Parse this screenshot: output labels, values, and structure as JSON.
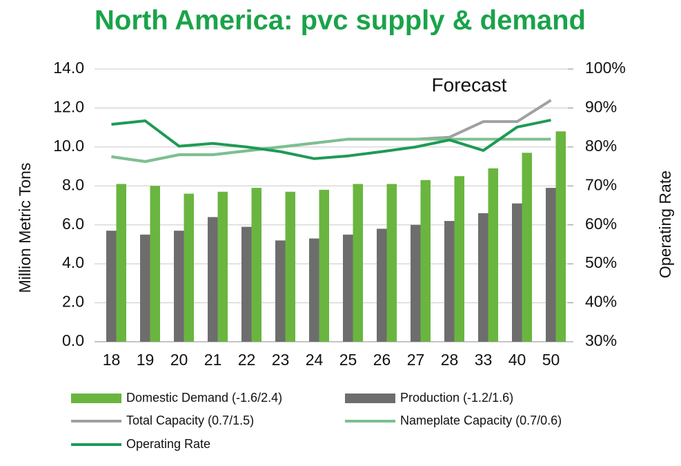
{
  "chart_data": {
    "type": "bar_line",
    "title": "North America: pvc supply & demand",
    "annotation": "Forecast",
    "ylabel": "Million Metric Tons",
    "y2label": "Operating Rate",
    "categories": [
      "18",
      "19",
      "20",
      "21",
      "22",
      "23",
      "24",
      "25",
      "26",
      "27",
      "28",
      "33",
      "40",
      "50"
    ],
    "series": [
      {
        "name": "Domestic Demand (-1.6/2.4)",
        "kind": "bar",
        "color": "#6ab540",
        "values": [
          8.1,
          8.0,
          7.6,
          7.7,
          7.9,
          7.7,
          7.8,
          8.1,
          8.1,
          8.3,
          8.5,
          8.9,
          9.7,
          10.8
        ]
      },
      {
        "name": "Production (-1.2/1.6)",
        "kind": "bar",
        "color": "#6d6d6d",
        "values": [
          5.7,
          5.5,
          5.7,
          6.4,
          5.9,
          5.2,
          5.3,
          5.5,
          5.8,
          6.0,
          6.2,
          6.6,
          7.1,
          7.9
        ]
      },
      {
        "name": "Total Capacity (0.7/1.5)",
        "kind": "line",
        "color": "#a0a0a0",
        "values": [
          9.5,
          9.25,
          9.6,
          9.6,
          9.8,
          10.0,
          10.2,
          10.4,
          10.4,
          10.4,
          10.5,
          11.3,
          11.3,
          12.4
        ]
      },
      {
        "name": "Nameplate Capacity (0.7/0.6)",
        "kind": "line",
        "color": "#7cc08f",
        "values": [
          9.5,
          9.25,
          9.6,
          9.6,
          9.8,
          10.0,
          10.2,
          10.4,
          10.4,
          10.4,
          10.4,
          10.4,
          10.4,
          10.4
        ]
      },
      {
        "name": "Operating Rate",
        "kind": "line",
        "color": "#1e9a55",
        "axis": "y2",
        "values": [
          85.8,
          86.7,
          80.2,
          80.9,
          80.0,
          78.8,
          77.0,
          77.7,
          78.8,
          80.0,
          81.8,
          79.1,
          85.1,
          86.9
        ]
      }
    ],
    "ylim": [
      0,
      14
    ],
    "yticks": [
      {
        "value": 0,
        "label": "0.0"
      },
      {
        "value": 2,
        "label": "2.0"
      },
      {
        "value": 4,
        "label": "4.0"
      },
      {
        "value": 6,
        "label": "6.0"
      },
      {
        "value": 8,
        "label": "8.0"
      },
      {
        "value": 10,
        "label": "10.0"
      },
      {
        "value": 12,
        "label": "12.0"
      },
      {
        "value": 14,
        "label": "14.0"
      }
    ],
    "y2lim": [
      30,
      100
    ],
    "y2ticks": [
      {
        "value": 30,
        "label": "30%"
      },
      {
        "value": 40,
        "label": "40%"
      },
      {
        "value": 50,
        "label": "50%"
      },
      {
        "value": 60,
        "label": "60%"
      },
      {
        "value": 70,
        "label": "70%"
      },
      {
        "value": 80,
        "label": "80%"
      },
      {
        "value": 90,
        "label": "90%"
      },
      {
        "value": 100,
        "label": "100%"
      }
    ],
    "grid": true
  }
}
